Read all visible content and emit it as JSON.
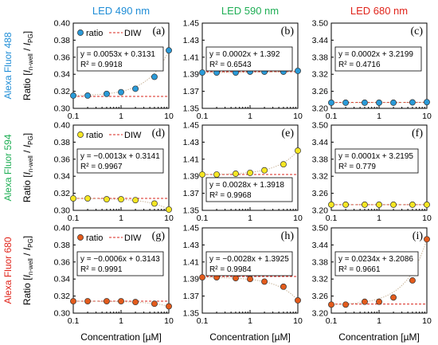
{
  "columns": [
    {
      "label": "LED 490 nm",
      "color": "#1f8dd6"
    },
    {
      "label": "LED 590 nm",
      "color": "#1fae55"
    },
    {
      "label": "LED 680 nm",
      "color": "#e0241b"
    }
  ],
  "rows": [
    {
      "label": "Alexa Fluor 488",
      "color": "#1f8dd6",
      "marker": "#2a9ad8"
    },
    {
      "label": "Alexa Fluor 594",
      "color": "#1fae55",
      "marker": "#f5e623"
    },
    {
      "label": "Alexa Fluor 680",
      "color": "#e0241b",
      "marker": "#e35b1c"
    }
  ],
  "ylabel_prefix": "Ratio [",
  "ylabel_main": "I",
  "ylabel_sub1": "n-well",
  "ylabel_mid": " / ",
  "ylabel_sub2": "PG",
  "ylabel_suffix": "]",
  "xlabel": "Concentration [µM]",
  "x_ticks": [
    "0.1",
    "1",
    "10"
  ],
  "legend": {
    "ratio": "ratio",
    "diw": "DIW"
  },
  "chart_data": [
    {
      "panel": "(a)",
      "type": "scatter",
      "xscale": "log",
      "ylim": [
        0.3,
        0.4
      ],
      "yticks": [
        "0.30",
        "0.32",
        "0.34",
        "0.36",
        "0.38",
        "0.40"
      ],
      "x": [
        0.1,
        0.2,
        0.5,
        1,
        2,
        5,
        10
      ],
      "y": [
        0.315,
        0.315,
        0.317,
        0.319,
        0.323,
        0.337,
        0.368
      ],
      "diw": 0.314,
      "eq": "y = 0.0053x + 0.3131",
      "r2": "R² = 0.9918",
      "legend": true
    },
    {
      "panel": "(b)",
      "type": "scatter",
      "xscale": "log",
      "ylim": [
        1.35,
        1.45
      ],
      "yticks": [
        "1.35",
        "1.37",
        "1.39",
        "1.41",
        "1.43",
        "1.45"
      ],
      "x": [
        0.1,
        0.2,
        0.5,
        1,
        2,
        5,
        10
      ],
      "y": [
        1.392,
        1.392,
        1.392,
        1.393,
        1.393,
        1.393,
        1.394
      ],
      "diw": 1.393,
      "eq": "y = 0.0002x + 1.392",
      "r2": "R² = 0.6543",
      "legend": false
    },
    {
      "panel": "(c)",
      "type": "scatter",
      "xscale": "log",
      "ylim": [
        3.2,
        3.5
      ],
      "yticks": [
        "3.20",
        "3.26",
        "3.32",
        "3.38",
        "3.44",
        "3.50"
      ],
      "x": [
        0.1,
        0.2,
        0.5,
        1,
        2,
        5,
        10
      ],
      "y": [
        3.22,
        3.22,
        3.22,
        3.22,
        3.22,
        3.221,
        3.222
      ],
      "diw": 3.221,
      "eq": "y = 0.0002x + 3.2199",
      "r2": "R² = 0.4716",
      "legend": false
    },
    {
      "panel": "(d)",
      "type": "scatter",
      "xscale": "log",
      "ylim": [
        0.3,
        0.4
      ],
      "yticks": [
        "0.30",
        "0.32",
        "0.34",
        "0.36",
        "0.38",
        "0.40"
      ],
      "x": [
        0.1,
        0.2,
        0.5,
        1,
        2,
        5,
        10
      ],
      "y": [
        0.314,
        0.314,
        0.313,
        0.313,
        0.312,
        0.308,
        0.301
      ],
      "diw": 0.314,
      "eq": "y = −0.0013x + 0.3141",
      "r2": "R² = 0.9967",
      "legend": true
    },
    {
      "panel": "(e)",
      "type": "scatter",
      "xscale": "log",
      "ylim": [
        1.35,
        1.45
      ],
      "yticks": [
        "1.35",
        "1.37",
        "1.39",
        "1.41",
        "1.43",
        "1.45"
      ],
      "x": [
        0.1,
        0.2,
        0.5,
        1,
        2,
        5,
        10
      ],
      "y": [
        1.392,
        1.392,
        1.393,
        1.394,
        1.397,
        1.404,
        1.42
      ],
      "diw": 1.392,
      "eq": "y = 0.0028x + 1.3918",
      "r2": "R² = 0.9968",
      "legend": false
    },
    {
      "panel": "(f)",
      "type": "scatter",
      "xscale": "log",
      "ylim": [
        3.2,
        3.5
      ],
      "yticks": [
        "3.20",
        "3.26",
        "3.32",
        "3.38",
        "3.44",
        "3.50"
      ],
      "x": [
        0.1,
        0.2,
        0.5,
        1,
        2,
        5,
        10
      ],
      "y": [
        3.22,
        3.22,
        3.22,
        3.22,
        3.22,
        3.22,
        3.22
      ],
      "diw": 3.22,
      "eq": "y = 0.0001x + 3.2195",
      "r2": "R² = 0.779",
      "legend": false
    },
    {
      "panel": "(g)",
      "type": "scatter",
      "xscale": "log",
      "ylim": [
        0.3,
        0.4
      ],
      "yticks": [
        "0.30",
        "0.32",
        "0.34",
        "0.36",
        "0.38",
        "0.40"
      ],
      "x": [
        0.1,
        0.2,
        0.5,
        1,
        2,
        5,
        10
      ],
      "y": [
        0.314,
        0.314,
        0.314,
        0.314,
        0.313,
        0.311,
        0.308
      ],
      "diw": 0.314,
      "eq": "y = −0.0006x + 0.3143",
      "r2": "R² = 0.9991",
      "legend": true
    },
    {
      "panel": "(h)",
      "type": "scatter",
      "xscale": "log",
      "ylim": [
        1.35,
        1.45
      ],
      "yticks": [
        "1.35",
        "1.37",
        "1.39",
        "1.41",
        "1.43",
        "1.45"
      ],
      "x": [
        0.1,
        0.2,
        0.5,
        1,
        2,
        5,
        10
      ],
      "y": [
        1.392,
        1.392,
        1.391,
        1.39,
        1.387,
        1.381,
        1.365
      ],
      "diw": 1.393,
      "eq": "y = −0.0028x + 1.3925",
      "r2": "R² = 0.9984",
      "legend": false
    },
    {
      "panel": "(i)",
      "type": "scatter",
      "xscale": "log",
      "ylim": [
        3.2,
        3.5
      ],
      "yticks": [
        "3.20",
        "3.26",
        "3.32",
        "3.38",
        "3.44",
        "3.50"
      ],
      "x": [
        0.1,
        0.2,
        0.5,
        1,
        2,
        5,
        10
      ],
      "y": [
        3.23,
        3.23,
        3.24,
        3.24,
        3.255,
        3.315,
        3.46
      ],
      "diw": 3.232,
      "eq": "y = 0.0234x + 3.2086",
      "r2": "R² = 0.9661",
      "legend": false
    }
  ]
}
